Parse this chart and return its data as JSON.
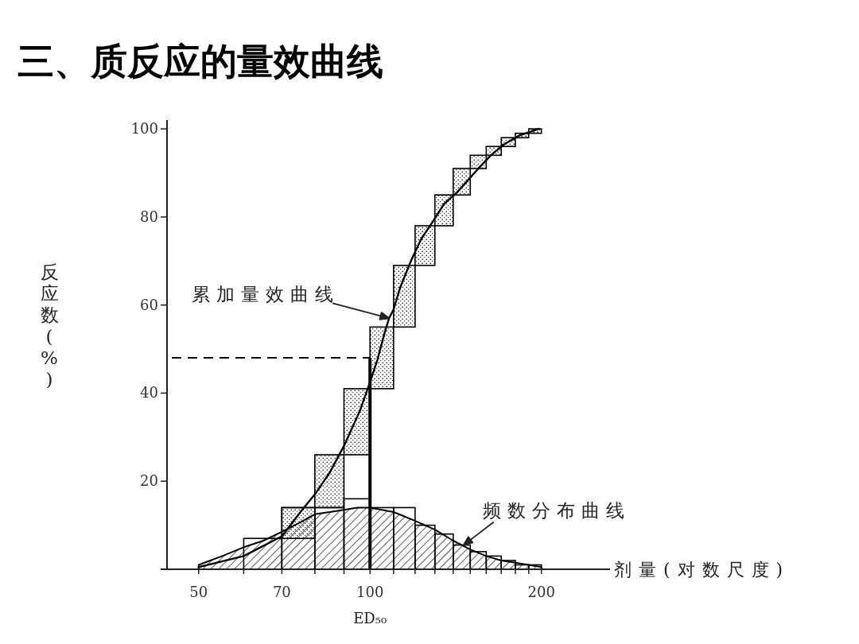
{
  "chart_data": {
    "type": "histogram",
    "title": "三、质反应的量效曲线",
    "xlabel": "剂量(对数尺度)",
    "ylabel": "反应数(%)",
    "log": "x",
    "xlim": [
      44,
      264
    ],
    "ylim": [
      0,
      102
    ],
    "xticks": [
      50,
      {
        "value": 60,
        "label": null
      },
      70,
      {
        "value": 80,
        "label": null
      },
      {
        "value": 90,
        "label": null
      },
      100,
      {
        "value": 110,
        "label": null
      },
      {
        "value": 120,
        "label": null
      },
      {
        "value": 130,
        "label": null
      },
      {
        "value": 140,
        "label": null
      },
      {
        "value": 150,
        "label": null
      },
      {
        "value": 160,
        "label": null
      },
      {
        "value": 170,
        "label": null
      },
      {
        "value": 180,
        "label": null
      },
      {
        "value": 190,
        "label": null
      },
      200
    ],
    "yticks": [
      20,
      40,
      60,
      80,
      100
    ],
    "series": [
      {
        "color": "#000000",
        "bins": [
          70,
          80,
          90,
          100,
          110,
          120,
          130,
          140,
          150,
          160,
          170,
          180,
          190,
          200
        ],
        "base": [
          7,
          14,
          26,
          41,
          55,
          69,
          78,
          85,
          91,
          94,
          96,
          98,
          99
        ],
        "values": [
          7,
          12,
          15,
          14,
          14,
          9,
          7,
          6,
          3,
          2,
          2,
          1,
          1
        ]
      },
      {
        "type": "area",
        "color": "#000000",
        "x": [
          50,
          55,
          60,
          65,
          70,
          75,
          80,
          85,
          90,
          95,
          100,
          110,
          120,
          130,
          140,
          150,
          160,
          170,
          180,
          190,
          200
        ],
        "values": [
          1,
          3,
          5,
          6.5,
          8.5,
          10.5,
          12.5,
          13,
          13.5,
          14,
          14,
          13,
          11,
          9,
          6.5,
          4.5,
          3,
          2,
          1.5,
          1,
          0.5
        ]
      },
      {
        "color": "#000000",
        "bins": [
          60,
          70,
          80,
          90,
          100,
          110,
          120,
          130,
          140,
          150,
          160,
          170,
          180,
          190,
          200
        ],
        "values": [
          7,
          14,
          14,
          16,
          14,
          14,
          10,
          8,
          5.5,
          4,
          3,
          2,
          1,
          1
        ]
      },
      {
        "type": "line",
        "color": "#000000",
        "x": [
          50,
          60,
          70,
          76,
          80,
          85,
          90,
          96,
          100,
          103,
          106,
          108,
          110,
          113,
          118,
          123,
          129,
          135,
          142,
          155,
          163,
          172,
          183,
          198
        ],
        "values": [
          0.5,
          3,
          7.5,
          13.5,
          17,
          22,
          28,
          36,
          42.5,
          47.5,
          53.5,
          57,
          59,
          64,
          70,
          75,
          79,
          83,
          85.5,
          91,
          94,
          96.5,
          98.5,
          100
        ]
      }
    ],
    "ref_lines": [
      {
        "axis": "y",
        "value": 48,
        "line_style": "dashed",
        "color": "#000000"
      },
      {
        "axis": "x",
        "value": 100,
        "line_style": "solid",
        "color": "#000000",
        "label": "ED₅₀"
      }
    ],
    "annotations": [
      {
        "text": "累加量效曲线",
        "x": 108,
        "y": 57
      },
      {
        "text": "频数分布曲线",
        "x": 146,
        "y": 5.5
      }
    ]
  }
}
